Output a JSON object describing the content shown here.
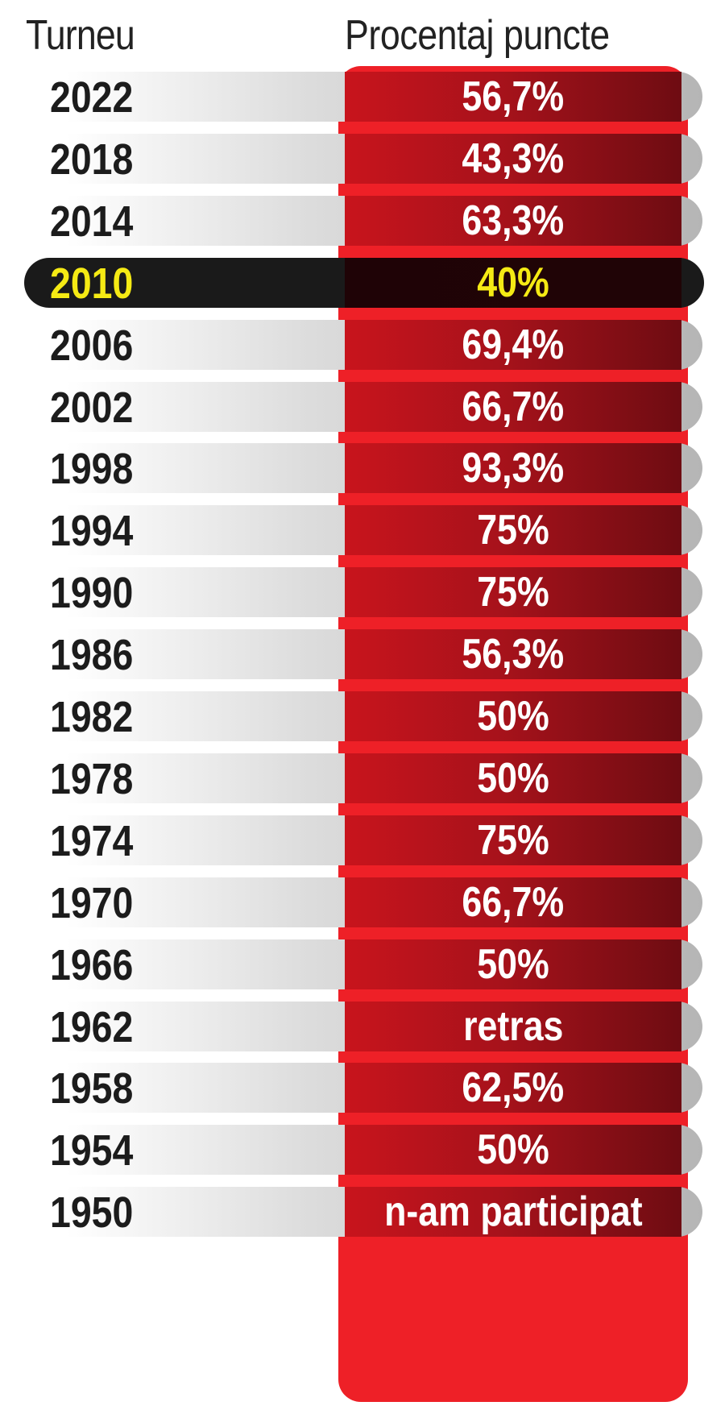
{
  "header": {
    "year_label": "Turneu",
    "value_label": "Procentaj puncte"
  },
  "colors": {
    "accent_red": "#ee2027",
    "highlight_bg": "#1a1a1a",
    "highlight_text": "#f5ea14"
  },
  "rows": [
    {
      "year": "2022",
      "value": "56,7%",
      "highlight": false
    },
    {
      "year": "2018",
      "value": "43,3%",
      "highlight": false
    },
    {
      "year": "2014",
      "value": "63,3%",
      "highlight": false
    },
    {
      "year": "2010",
      "value": "40%",
      "highlight": true
    },
    {
      "year": "2006",
      "value": "69,4%",
      "highlight": false
    },
    {
      "year": "2002",
      "value": "66,7%",
      "highlight": false
    },
    {
      "year": "1998",
      "value": "93,3%",
      "highlight": false
    },
    {
      "year": "1994",
      "value": "75%",
      "highlight": false
    },
    {
      "year": "1990",
      "value": "75%",
      "highlight": false
    },
    {
      "year": "1986",
      "value": "56,3%",
      "highlight": false
    },
    {
      "year": "1982",
      "value": "50%",
      "highlight": false
    },
    {
      "year": "1978",
      "value": "50%",
      "highlight": false
    },
    {
      "year": "1974",
      "value": "75%",
      "highlight": false
    },
    {
      "year": "1970",
      "value": "66,7%",
      "highlight": false
    },
    {
      "year": "1966",
      "value": "50%",
      "highlight": false
    },
    {
      "year": "1962",
      "value": "retras",
      "highlight": false
    },
    {
      "year": "1958",
      "value": "62,5%",
      "highlight": false
    },
    {
      "year": "1954",
      "value": "50%",
      "highlight": false
    },
    {
      "year": "1950",
      "value": "n-am participat",
      "highlight": false
    }
  ],
  "chart_data": {
    "type": "table",
    "columns": [
      "Turneu",
      "Procentaj puncte"
    ],
    "categories": [
      "2022",
      "2018",
      "2014",
      "2010",
      "2006",
      "2002",
      "1998",
      "1994",
      "1990",
      "1986",
      "1982",
      "1978",
      "1974",
      "1970",
      "1966",
      "1962",
      "1958",
      "1954",
      "1950"
    ],
    "values": [
      56.7,
      43.3,
      63.3,
      40,
      69.4,
      66.7,
      93.3,
      75,
      75,
      56.3,
      50,
      50,
      75,
      66.7,
      50,
      null,
      62.5,
      50,
      null
    ]
  }
}
